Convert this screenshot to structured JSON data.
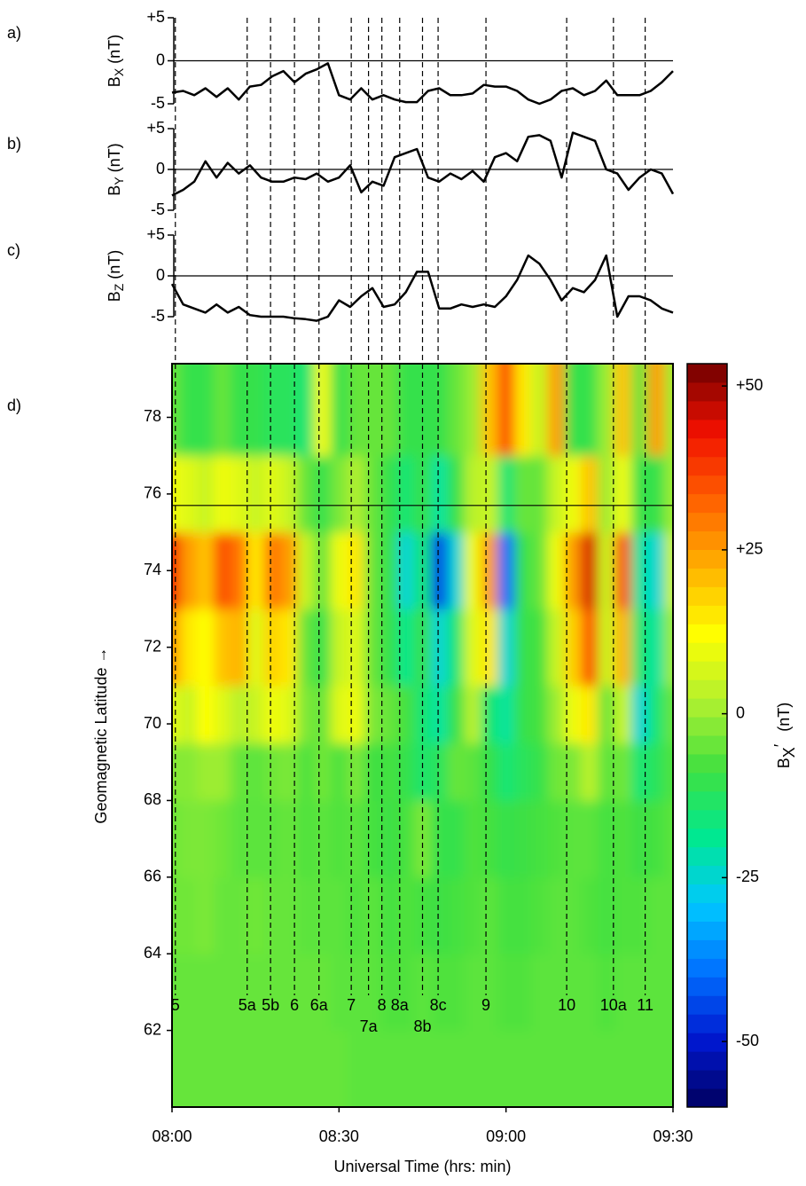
{
  "chart_data": [
    {
      "type": "line",
      "panel": "a)",
      "ylabel": "B",
      "ylabel_sub": "X",
      "ylabel_unit": "(nT)",
      "x": [
        0,
        2,
        4,
        6,
        8,
        10,
        12,
        14,
        16,
        18,
        20,
        22,
        24,
        26,
        28,
        30,
        32,
        34,
        36,
        38,
        40,
        42,
        44,
        46,
        48,
        50,
        52,
        54,
        56,
        58,
        60,
        62,
        64,
        66,
        68,
        70,
        72,
        74,
        76,
        78,
        80,
        82,
        84,
        86,
        88,
        90
      ],
      "xlim": [
        0,
        90
      ],
      "ylim": [
        -5,
        5
      ],
      "yticks": [
        {
          "value": 5,
          "label": "+5"
        },
        0,
        -5
      ],
      "zero_line": true,
      "series": [
        {
          "color": "#000000",
          "values": [
            -3.7,
            -3.5,
            -4,
            -3.2,
            -4.2,
            -3.2,
            -4.5,
            -3,
            -2.8,
            -1.8,
            -1.2,
            -2.5,
            -1.5,
            -1,
            -0.3,
            -4,
            -4.5,
            -3.2,
            -4.5,
            -4,
            -4.5,
            -4.8,
            -4.8,
            -3.5,
            -3.2,
            -4,
            -4,
            -3.8,
            -2.8,
            -3,
            -3,
            -3.5,
            -4.5,
            -5,
            -4.5,
            -3.5,
            -3.2,
            -4,
            -3.5,
            -2.3,
            -4,
            -4,
            -4,
            -3.5,
            -2.5,
            -1.2
          ]
        }
      ]
    },
    {
      "type": "line",
      "panel": "b)",
      "ylabel": "B",
      "ylabel_sub": "Y",
      "ylabel_unit": "(nT)",
      "x": [
        0,
        2,
        4,
        6,
        8,
        10,
        12,
        14,
        16,
        18,
        20,
        22,
        24,
        26,
        28,
        30,
        32,
        34,
        36,
        38,
        40,
        42,
        44,
        46,
        48,
        50,
        52,
        54,
        56,
        58,
        60,
        62,
        64,
        66,
        68,
        70,
        72,
        74,
        76,
        78,
        80,
        82,
        84,
        86,
        88,
        90
      ],
      "xlim": [
        0,
        90
      ],
      "ylim": [
        -5,
        5
      ],
      "yticks": [
        {
          "value": 5,
          "label": "+5"
        },
        0,
        -5
      ],
      "zero_line": true,
      "series": [
        {
          "color": "#000000",
          "values": [
            -3.2,
            -2.5,
            -1.5,
            1,
            -1,
            0.8,
            -0.5,
            0.5,
            -1,
            -1.5,
            -1.5,
            -1,
            -1.2,
            -0.5,
            -1.5,
            -1,
            0.5,
            -2.8,
            -1.5,
            -2,
            1.5,
            2,
            2.5,
            -1,
            -1.5,
            -0.5,
            -1.2,
            -0.2,
            -1.5,
            1.5,
            2,
            1,
            4,
            4.2,
            3.5,
            -1,
            4.5,
            4,
            3.5,
            0,
            -0.5,
            -2.5,
            -1,
            0,
            -0.5,
            -3
          ]
        }
      ]
    },
    {
      "type": "line",
      "panel": "c)",
      "ylabel": "B",
      "ylabel_sub": "Z",
      "ylabel_unit": "(nT)",
      "x": [
        0,
        2,
        4,
        6,
        8,
        10,
        12,
        14,
        16,
        18,
        20,
        22,
        24,
        26,
        28,
        30,
        32,
        34,
        36,
        38,
        40,
        42,
        44,
        46,
        48,
        50,
        52,
        54,
        56,
        58,
        60,
        62,
        64,
        66,
        68,
        70,
        72,
        74,
        76,
        78,
        80,
        82,
        84,
        86,
        88,
        90
      ],
      "xlim": [
        0,
        90
      ],
      "ylim": [
        -5,
        5
      ],
      "yticks": [
        {
          "value": 5,
          "label": "+5"
        },
        0,
        -5
      ],
      "zero_line": true,
      "series": [
        {
          "color": "#000000",
          "values": [
            -1,
            -3.5,
            -4,
            -4.5,
            -3.5,
            -4.5,
            -3.8,
            -4.8,
            -5,
            -5,
            -5,
            -5.2,
            -5.3,
            -5.5,
            -5,
            -3,
            -3.8,
            -2.5,
            -1.5,
            -3.8,
            -3.5,
            -2,
            0.5,
            0.5,
            -4,
            -4,
            -3.5,
            -3.8,
            -3.5,
            -3.8,
            -2.5,
            -0.5,
            2.5,
            1.5,
            -0.5,
            -3,
            -1.5,
            -2,
            -0.5,
            2.5,
            -5,
            -2.5,
            -2.5,
            -3,
            -4,
            -4.5
          ]
        }
      ]
    },
    {
      "type": "heatmap",
      "panel": "d)",
      "xlabel": "Universal Time (hrs: min)",
      "ylabel": "Geomagnetic Latitude →",
      "x": [
        0,
        3,
        6,
        9,
        12,
        15,
        18,
        21,
        24,
        27,
        30,
        33,
        36,
        39,
        42,
        45,
        48,
        51,
        54,
        57,
        60,
        63,
        66,
        69,
        72,
        75,
        78,
        81,
        84,
        87,
        90
      ],
      "y": [
        61,
        63,
        65,
        67,
        69,
        70,
        72,
        74,
        76,
        78
      ],
      "z": [
        [
          -5,
          -5,
          -5,
          -5,
          -5,
          -5,
          -5,
          -5,
          -5,
          -5,
          -5,
          -6,
          -6,
          -6,
          -6,
          -6,
          -6,
          -6,
          -6,
          -6,
          -6,
          -6,
          -6,
          -6,
          -6,
          -6,
          -6,
          -6,
          -6,
          -6,
          -6
        ],
        [
          -5,
          -5,
          -5,
          -5,
          -5,
          -5,
          -5,
          -5,
          -5,
          -5,
          -6,
          -6,
          -6,
          -7,
          -7,
          -6,
          -7,
          -7,
          -6,
          -6,
          -7,
          -7,
          -6,
          -6,
          -6,
          -6,
          -7,
          -6,
          -6,
          -6,
          -6
        ],
        [
          -4,
          -4,
          -3,
          -5,
          -5,
          -4,
          -5,
          -5,
          -6,
          -6,
          -6,
          -7,
          -6,
          -8,
          -7,
          -8,
          -9,
          -8,
          -7,
          -6,
          -8,
          -8,
          -7,
          -6,
          -6,
          -7,
          -8,
          -7,
          -7,
          -6,
          -6
        ],
        [
          -4,
          -3,
          -3,
          -4,
          -6,
          -6,
          -6,
          -5,
          -7,
          -6,
          -7,
          -6,
          -8,
          -9,
          -8,
          -3,
          -10,
          -10,
          -7,
          -8,
          -10,
          -9,
          -8,
          -7,
          -6,
          -6,
          -8,
          -7,
          -9,
          -8,
          -6
        ],
        [
          -2,
          -2,
          0,
          0,
          -5,
          -6,
          -4,
          -3,
          -7,
          -4,
          -7,
          -3,
          -9,
          -8,
          -10,
          -14,
          -12,
          -5,
          -6,
          -10,
          -15,
          -12,
          -10,
          -4,
          -3,
          3,
          -6,
          -4,
          -15,
          -12,
          -7
        ],
        [
          8,
          5,
          12,
          8,
          3,
          5,
          10,
          8,
          -3,
          -5,
          8,
          10,
          -3,
          -5,
          -8,
          -15,
          -20,
          -10,
          3,
          -15,
          -20,
          -10,
          -8,
          0,
          10,
          15,
          -5,
          5,
          -25,
          -15,
          -5
        ],
        [
          25,
          15,
          12,
          20,
          22,
          8,
          18,
          15,
          -5,
          -10,
          5,
          8,
          -5,
          -10,
          -18,
          -10,
          -25,
          -15,
          8,
          15,
          -25,
          -10,
          -8,
          5,
          18,
          35,
          5,
          22,
          -15,
          -20,
          0
        ],
        [
          40,
          25,
          20,
          35,
          30,
          15,
          30,
          25,
          5,
          -5,
          10,
          15,
          -5,
          -10,
          -25,
          -15,
          -45,
          -25,
          10,
          25,
          -40,
          -10,
          -5,
          10,
          25,
          45,
          5,
          35,
          -20,
          -25,
          5
        ],
        [
          10,
          8,
          5,
          10,
          8,
          5,
          8,
          5,
          -5,
          -10,
          -3,
          2,
          -5,
          -10,
          -15,
          -10,
          -20,
          -10,
          3,
          5,
          -15,
          -5,
          -5,
          5,
          10,
          20,
          0,
          10,
          -10,
          -10,
          0
        ],
        [
          -5,
          -10,
          -10,
          -5,
          -10,
          -10,
          -12,
          -12,
          -15,
          10,
          -10,
          -5,
          -5,
          -5,
          -10,
          -10,
          -10,
          -5,
          0,
          20,
          35,
          15,
          5,
          25,
          -10,
          -10,
          0,
          20,
          -5,
          25,
          0
        ]
      ],
      "xlim": [
        0,
        90
      ],
      "ylim": [
        60,
        79.4
      ],
      "xticks": [
        {
          "value": 0,
          "label": "08:00"
        },
        {
          "value": 30,
          "label": "08:30"
        },
        {
          "value": 60,
          "label": "09:00"
        },
        {
          "value": 90,
          "label": "09:30"
        }
      ],
      "yticks": [
        62,
        64,
        66,
        68,
        70,
        72,
        74,
        76,
        78
      ],
      "hline": 75.7,
      "colorbar": {
        "label": "B",
        "label_sub": "X",
        "label_mark": "′",
        "label_unit": "(nT)",
        "lim": [
          -60,
          53.4
        ],
        "ticks": [
          {
            "value": 50,
            "label": "+50"
          },
          {
            "value": 25,
            "label": "+25"
          },
          0,
          -25,
          -50
        ],
        "colors": [
          "#000060",
          "#0018d0",
          "#0070ff",
          "#00c8ff",
          "#00e890",
          "#40e040",
          "#b0f030",
          "#ffff00",
          "#ffb000",
          "#ff6000",
          "#f01000",
          "#700000"
        ]
      },
      "events": [
        {
          "label": "5",
          "t": 0.6
        },
        {
          "label": "5a",
          "t": 13.5
        },
        {
          "label": "5b",
          "t": 17.7
        },
        {
          "label": "6",
          "t": 22
        },
        {
          "label": "6a",
          "t": 26.4
        },
        {
          "label": "7",
          "t": 32.2
        },
        {
          "label": "7a",
          "t": 35.3
        },
        {
          "label": "8",
          "t": 37.7
        },
        {
          "label": "8a",
          "t": 40.9
        },
        {
          "label": "8b",
          "t": 45
        },
        {
          "label": "8c",
          "t": 47.8
        },
        {
          "label": "9",
          "t": 56.4
        },
        {
          "label": "10",
          "t": 70.9
        },
        {
          "label": "10a",
          "t": 79.3
        },
        {
          "label": "11",
          "t": 85
        }
      ]
    }
  ]
}
